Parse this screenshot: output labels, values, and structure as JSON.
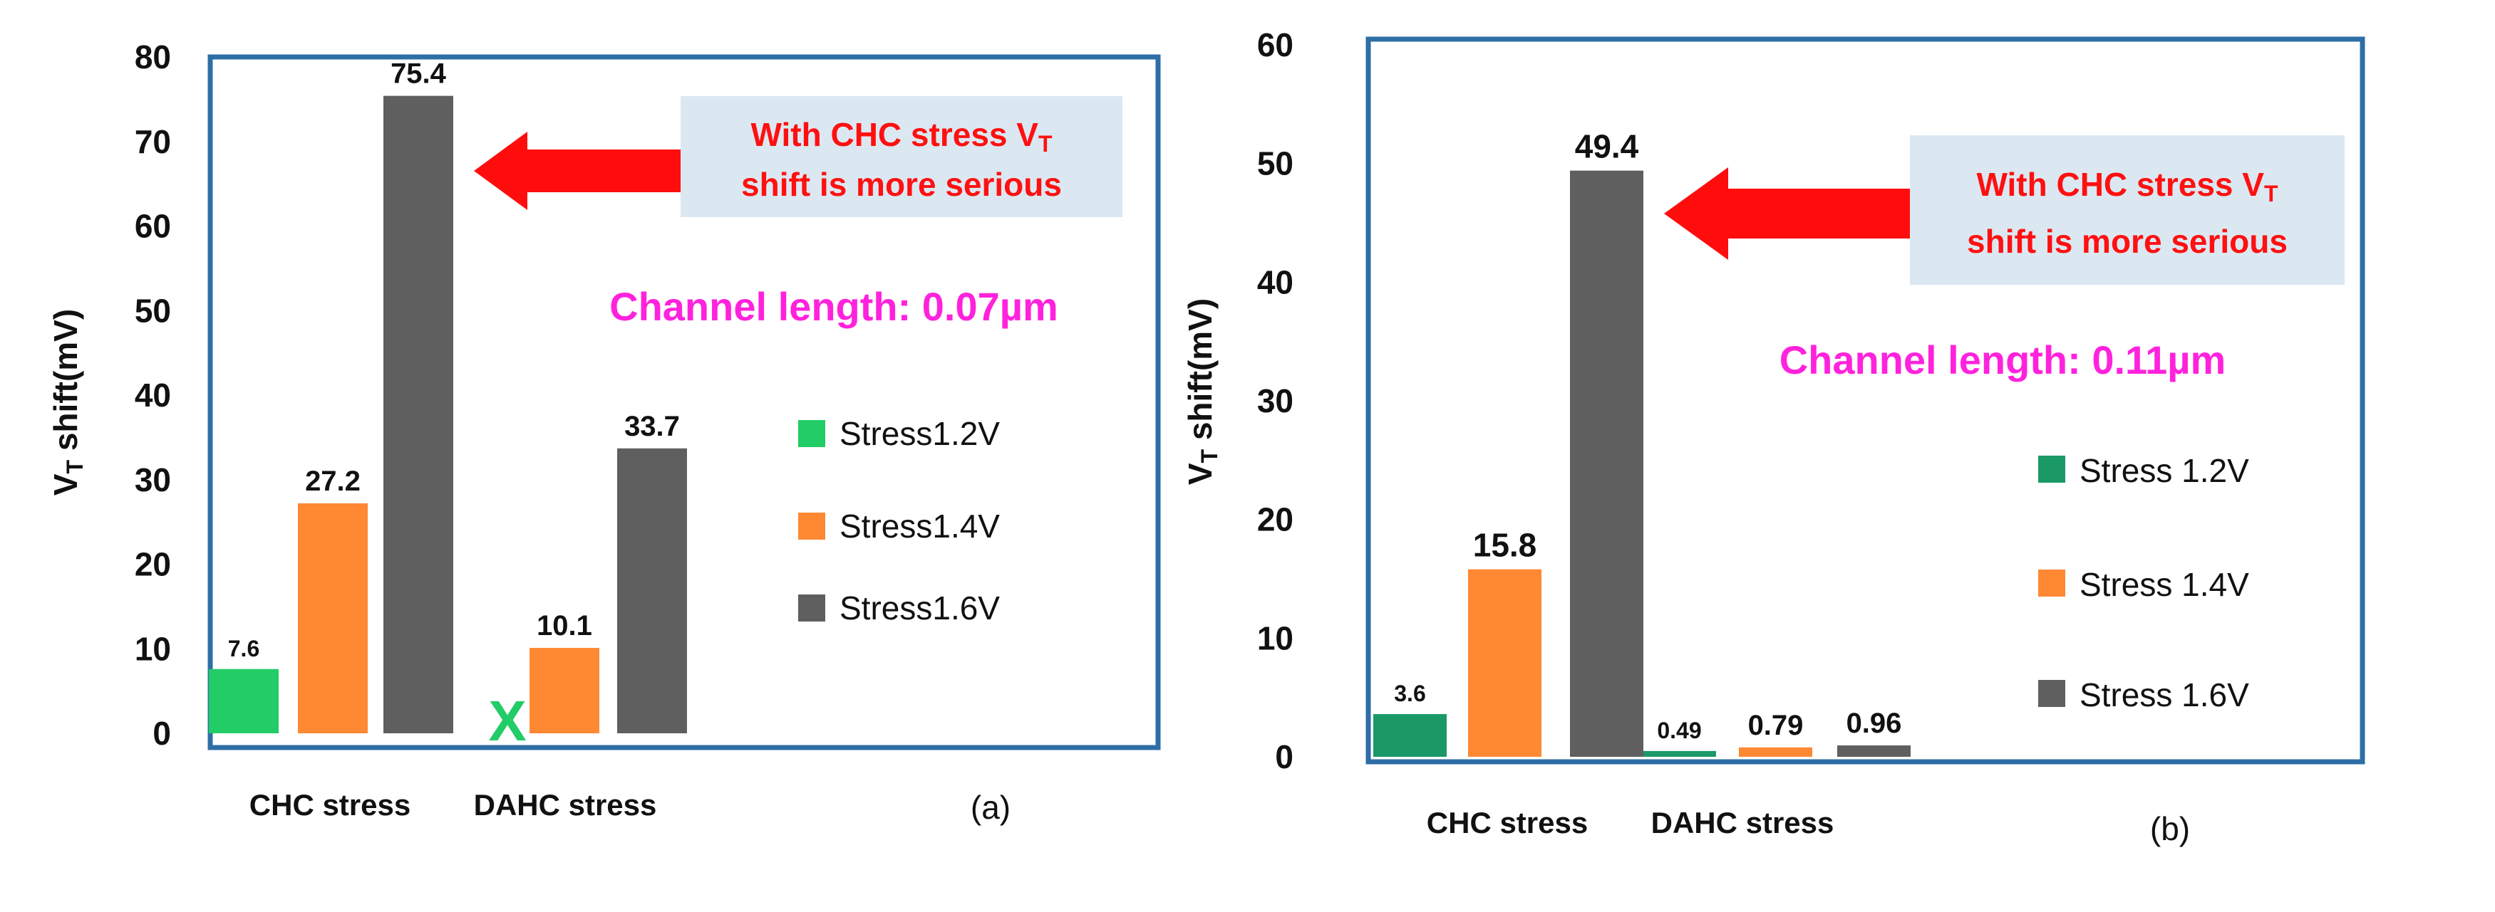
{
  "colors": {
    "stress12_a": "#22cc66",
    "stress12_b": "#1a9966",
    "stress14": "#ff8833",
    "stress16": "#5f5f5f",
    "frame": "#2e6ea6",
    "arrow": "#ff0d0d",
    "note_bg": "#dbe8f2",
    "channel_text": "#ff22dd"
  },
  "chart_data": [
    {
      "type": "bar",
      "panel_label": "(a)",
      "ylabel": "VT shift(mV)",
      "ylabel_main": "V",
      "ylabel_sub": "T",
      "ylabel_rest": "  shift(mV)",
      "ylim": [
        0,
        80
      ],
      "yticks": [
        0,
        10,
        20,
        30,
        40,
        50,
        60,
        70,
        80
      ],
      "categories": [
        "CHC stress",
        "DAHC stress"
      ],
      "series": [
        {
          "name": "Stress1.2V",
          "values": [
            7.6,
            null
          ],
          "labels": [
            "7.6",
            ""
          ]
        },
        {
          "name": "Stress1.4V",
          "values": [
            27.2,
            10.1
          ],
          "labels": [
            "27.2",
            "10.1"
          ]
        },
        {
          "name": "Stress1.6V",
          "values": [
            75.4,
            33.7
          ],
          "labels": [
            "75.4",
            "33.7"
          ]
        }
      ],
      "missing_marker": "X",
      "annotation_line1": "With CHC stress V",
      "annotation_sub": "T",
      "annotation_line2": "shift is more serious",
      "channel_note": "Channel length: 0.07µm"
    },
    {
      "type": "bar",
      "panel_label": "(b)",
      "ylabel": "VT shift(mV)",
      "ylabel_main": "V",
      "ylabel_sub": "T",
      "ylabel_rest": " shift(mV)",
      "ylim": [
        0,
        60
      ],
      "yticks": [
        0,
        10,
        20,
        30,
        40,
        50,
        60
      ],
      "categories": [
        "CHC stress",
        "DAHC stress"
      ],
      "series": [
        {
          "name": "Stress 1.2V",
          "values": [
            3.6,
            0.49
          ],
          "labels": [
            "3.6",
            "0.49"
          ]
        },
        {
          "name": "Stress 1.4V",
          "values": [
            15.8,
            0.79
          ],
          "labels": [
            "15.8",
            "0.79"
          ]
        },
        {
          "name": "Stress 1.6V",
          "values": [
            49.4,
            0.96
          ],
          "labels": [
            "49.4",
            "0.96"
          ]
        }
      ],
      "annotation_line1": "With CHC stress V",
      "annotation_sub": "T",
      "annotation_line2": "shift is more serious",
      "channel_note": "Channel length: 0.11µm"
    }
  ]
}
